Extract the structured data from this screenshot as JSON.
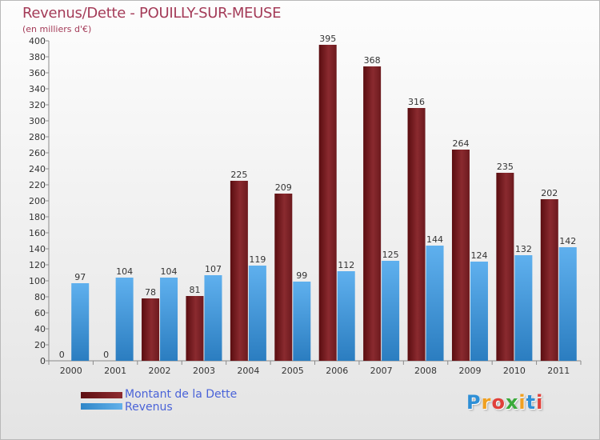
{
  "header": {
    "title": "Revenus/Dette - POUILLY-SUR-MEUSE",
    "subtitle": "(en milliers d'€)"
  },
  "legend": {
    "dette_label": "Montant de la Dette",
    "revenus_label": "Revenus"
  },
  "logo": {
    "letters": [
      "P",
      "r",
      "o",
      "x",
      "i",
      "t",
      "i"
    ],
    "colors": [
      "#2e8fd6",
      "#f0a020",
      "#e0403a",
      "#3aaa3a",
      "#f0a020",
      "#2e8fd6",
      "#e0403a"
    ]
  },
  "colors": {
    "dette": "#7a1d22",
    "revenus": "#4aa3e3",
    "title": "#a43b58",
    "legend_text": "#4a63d8"
  },
  "chart_data": {
    "type": "bar",
    "title": "Revenus/Dette - POUILLY-SUR-MEUSE",
    "subtitle": "(en milliers d'€)",
    "categories": [
      "2000",
      "2001",
      "2002",
      "2003",
      "2004",
      "2005",
      "2006",
      "2007",
      "2008",
      "2009",
      "2010",
      "2011"
    ],
    "series": [
      {
        "name": "Montant de la Dette",
        "values": [
          0,
          0,
          78,
          81,
          225,
          209,
          395,
          368,
          316,
          264,
          235,
          202
        ]
      },
      {
        "name": "Revenus",
        "values": [
          97,
          104,
          104,
          107,
          119,
          99,
          112,
          125,
          144,
          124,
          132,
          142
        ]
      }
    ],
    "ylim": [
      0,
      400
    ],
    "yticks": [
      0,
      20,
      40,
      60,
      80,
      100,
      120,
      140,
      160,
      180,
      200,
      220,
      240,
      260,
      280,
      300,
      320,
      340,
      360,
      380,
      400
    ],
    "grid": false,
    "legend_position": "bottom-left"
  }
}
